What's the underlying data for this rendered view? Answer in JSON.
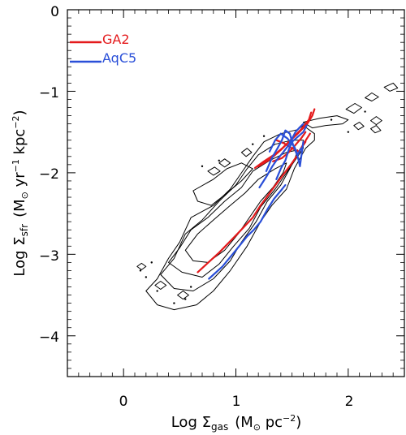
{
  "chart_data": {
    "type": "line",
    "title": "",
    "xlabel": {
      "prefix": "Log ",
      "symbol": "Σ",
      "subscript": "gas",
      "units_open": "(M",
      "units_sun": "⊙",
      "units_rest": " pc",
      "units_exp": "−2",
      "units_close": ")"
    },
    "ylabel": {
      "prefix": "Log ",
      "symbol": "Σ",
      "subscript": "sfr",
      "units_open": "(M",
      "units_sun": "⊙",
      "units_mid": " yr",
      "units_exp1": "−1",
      "units_rest": " kpc",
      "units_exp2": "−2",
      "units_close": ")"
    },
    "xlim": [
      -0.5,
      2.5
    ],
    "ylim": [
      -4.5,
      0
    ],
    "xticks": [
      0,
      1,
      2
    ],
    "xtick_labels": [
      "0",
      "1",
      "2"
    ],
    "yticks": [
      0,
      -1,
      -2,
      -3,
      -4
    ],
    "ytick_labels": [
      "0",
      "−1",
      "−2",
      "−3",
      "−4"
    ],
    "legend_position": "top-left",
    "series": [
      {
        "name": "GA2",
        "color": "#e41a1c",
        "segments": [
          [
            [
              0.66,
              -3.22
            ],
            [
              0.85,
              -2.98
            ],
            [
              1.02,
              -2.74
            ],
            [
              1.15,
              -2.55
            ],
            [
              1.22,
              -2.4
            ],
            [
              1.3,
              -2.25
            ],
            [
              1.38,
              -2.1
            ],
            [
              1.45,
              -1.97
            ],
            [
              1.5,
              -1.88
            ],
            [
              1.55,
              -1.78
            ],
            [
              1.6,
              -1.65
            ],
            [
              1.66,
              -1.52
            ]
          ],
          [
            [
              1.17,
              -1.94
            ],
            [
              1.25,
              -1.86
            ],
            [
              1.35,
              -1.77
            ],
            [
              1.42,
              -1.69
            ],
            [
              1.48,
              -1.61
            ],
            [
              1.55,
              -1.52
            ],
            [
              1.6,
              -1.45
            ],
            [
              1.64,
              -1.39
            ],
            [
              1.68,
              -1.3
            ],
            [
              1.7,
              -1.22
            ]
          ],
          [
            [
              1.2,
              -1.92
            ],
            [
              1.3,
              -1.84
            ],
            [
              1.4,
              -1.72
            ],
            [
              1.5,
              -1.58
            ],
            [
              1.58,
              -1.47
            ],
            [
              1.65,
              -1.35
            ],
            [
              1.67,
              -1.26
            ]
          ],
          [
            [
              1.33,
              -1.86
            ],
            [
              1.41,
              -1.82
            ],
            [
              1.47,
              -1.75
            ],
            [
              1.53,
              -1.66
            ],
            [
              1.58,
              -1.58
            ],
            [
              1.62,
              -1.5
            ]
          ],
          [
            [
              1.36,
              -1.6
            ],
            [
              1.43,
              -1.64
            ],
            [
              1.5,
              -1.7
            ],
            [
              1.56,
              -1.74
            ],
            [
              1.62,
              -1.62
            ]
          ]
        ]
      },
      {
        "name": "AqC5",
        "color": "#2a4fd8",
        "segments": [
          [
            [
              0.76,
              -3.3
            ],
            [
              0.88,
              -3.15
            ],
            [
              1.0,
              -2.95
            ],
            [
              1.1,
              -2.78
            ],
            [
              1.16,
              -2.7
            ],
            [
              1.22,
              -2.6
            ],
            [
              1.28,
              -2.45
            ],
            [
              1.34,
              -2.32
            ],
            [
              1.4,
              -2.22
            ],
            [
              1.44,
              -2.15
            ]
          ],
          [
            [
              1.21,
              -2.18
            ],
            [
              1.27,
              -2.05
            ],
            [
              1.32,
              -1.93
            ],
            [
              1.36,
              -1.85
            ],
            [
              1.42,
              -1.75
            ],
            [
              1.47,
              -1.66
            ],
            [
              1.5,
              -1.58
            ],
            [
              1.53,
              -1.5
            ],
            [
              1.57,
              -1.44
            ],
            [
              1.6,
              -1.4
            ]
          ],
          [
            [
              1.27,
              -1.98
            ],
            [
              1.32,
              -1.82
            ],
            [
              1.37,
              -1.7
            ],
            [
              1.41,
              -1.6
            ],
            [
              1.44,
              -1.48
            ],
            [
              1.48,
              -1.52
            ],
            [
              1.51,
              -1.66
            ],
            [
              1.55,
              -1.8
            ],
            [
              1.57,
              -1.92
            ],
            [
              1.6,
              -1.62
            ]
          ],
          [
            [
              1.36,
              -2.08
            ],
            [
              1.4,
              -1.95
            ],
            [
              1.44,
              -1.85
            ],
            [
              1.47,
              -1.72
            ],
            [
              1.5,
              -1.62
            ],
            [
              1.55,
              -1.56
            ],
            [
              1.6,
              -1.5
            ],
            [
              1.63,
              -1.42
            ]
          ],
          [
            [
              1.3,
              -1.74
            ],
            [
              1.35,
              -1.6
            ],
            [
              1.4,
              -1.52
            ],
            [
              1.46,
              -1.58
            ],
            [
              1.52,
              -1.68
            ],
            [
              1.55,
              -1.78
            ],
            [
              1.58,
              -1.7
            ]
          ]
        ]
      }
    ],
    "contours": [
      [
        [
          0.2,
          -3.45
        ],
        [
          0.3,
          -3.3
        ],
        [
          0.4,
          -3.05
        ],
        [
          0.5,
          -2.85
        ],
        [
          0.6,
          -2.55
        ],
        [
          0.8,
          -2.4
        ],
        [
          0.95,
          -2.2
        ],
        [
          1.05,
          -2.0
        ],
        [
          1.15,
          -1.8
        ],
        [
          1.25,
          -1.62
        ],
        [
          1.4,
          -1.52
        ],
        [
          1.55,
          -1.47
        ],
        [
          1.6,
          -1.42
        ],
        [
          1.7,
          -1.52
        ],
        [
          1.7,
          -1.6
        ],
        [
          1.62,
          -1.7
        ],
        [
          1.52,
          -1.95
        ],
        [
          1.45,
          -2.2
        ],
        [
          1.32,
          -2.4
        ],
        [
          1.22,
          -2.6
        ],
        [
          1.1,
          -2.9
        ],
        [
          0.95,
          -3.2
        ],
        [
          0.8,
          -3.45
        ],
        [
          0.65,
          -3.62
        ],
        [
          0.45,
          -3.68
        ],
        [
          0.3,
          -3.62
        ],
        [
          0.2,
          -3.45
        ]
      ],
      [
        [
          0.33,
          -3.25
        ],
        [
          0.45,
          -3.05
        ],
        [
          0.55,
          -2.75
        ],
        [
          0.7,
          -2.58
        ],
        [
          0.85,
          -2.35
        ],
        [
          1.0,
          -2.15
        ],
        [
          1.1,
          -1.95
        ],
        [
          1.2,
          -1.78
        ],
        [
          1.35,
          -1.65
        ],
        [
          1.5,
          -1.6
        ],
        [
          1.6,
          -1.6
        ],
        [
          1.6,
          -1.7
        ],
        [
          1.5,
          -1.9
        ],
        [
          1.4,
          -2.15
        ],
        [
          1.28,
          -2.35
        ],
        [
          1.18,
          -2.6
        ],
        [
          1.05,
          -2.85
        ],
        [
          0.95,
          -3.08
        ],
        [
          0.8,
          -3.3
        ],
        [
          0.62,
          -3.45
        ],
        [
          0.45,
          -3.42
        ],
        [
          0.33,
          -3.25
        ]
      ],
      [
        [
          0.4,
          -3.1
        ],
        [
          0.5,
          -2.92
        ],
        [
          0.6,
          -2.7
        ],
        [
          0.75,
          -2.55
        ],
        [
          0.9,
          -2.35
        ],
        [
          1.05,
          -2.18
        ],
        [
          1.15,
          -1.98
        ],
        [
          1.3,
          -1.85
        ],
        [
          1.45,
          -1.75
        ],
        [
          1.55,
          -1.72
        ],
        [
          1.52,
          -1.85
        ],
        [
          1.45,
          -2.0
        ],
        [
          1.35,
          -2.2
        ],
        [
          1.22,
          -2.42
        ],
        [
          1.12,
          -2.68
        ],
        [
          0.98,
          -2.9
        ],
        [
          0.85,
          -3.12
        ],
        [
          0.7,
          -3.28
        ],
        [
          0.52,
          -3.22
        ],
        [
          0.4,
          -3.1
        ]
      ],
      [
        [
          0.55,
          -2.95
        ],
        [
          0.66,
          -2.75
        ],
        [
          0.8,
          -2.58
        ],
        [
          0.95,
          -2.4
        ],
        [
          1.08,
          -2.25
        ],
        [
          1.2,
          -2.08
        ],
        [
          1.35,
          -1.95
        ],
        [
          1.45,
          -1.88
        ],
        [
          1.42,
          -2.0
        ],
        [
          1.33,
          -2.18
        ],
        [
          1.22,
          -2.35
        ],
        [
          1.12,
          -2.55
        ],
        [
          1.02,
          -2.75
        ],
        [
          0.9,
          -2.95
        ],
        [
          0.75,
          -3.1
        ],
        [
          0.62,
          -3.08
        ],
        [
          0.55,
          -2.95
        ]
      ],
      [
        [
          0.62,
          -2.22
        ],
        [
          0.8,
          -2.08
        ],
        [
          0.92,
          -1.95
        ],
        [
          1.05,
          -1.88
        ],
        [
          1.15,
          -1.95
        ],
        [
          1.05,
          -2.1
        ],
        [
          0.92,
          -2.25
        ],
        [
          0.78,
          -2.4
        ],
        [
          0.66,
          -2.35
        ],
        [
          0.62,
          -2.22
        ]
      ],
      [
        [
          1.6,
          -1.38
        ],
        [
          1.75,
          -1.33
        ],
        [
          1.9,
          -1.3
        ],
        [
          2.0,
          -1.35
        ],
        [
          1.95,
          -1.4
        ],
        [
          1.8,
          -1.42
        ],
        [
          1.68,
          -1.45
        ],
        [
          1.6,
          -1.38
        ]
      ],
      [
        [
          1.98,
          -1.22
        ],
        [
          2.06,
          -1.15
        ],
        [
          2.12,
          -1.2
        ],
        [
          2.05,
          -1.27
        ],
        [
          1.98,
          -1.22
        ]
      ],
      [
        [
          2.15,
          -1.08
        ],
        [
          2.21,
          -1.02
        ],
        [
          2.27,
          -1.07
        ],
        [
          2.21,
          -1.12
        ],
        [
          2.15,
          -1.08
        ]
      ],
      [
        [
          2.32,
          -0.95
        ],
        [
          2.4,
          -0.9
        ],
        [
          2.44,
          -0.96
        ],
        [
          2.37,
          -1.0
        ],
        [
          2.32,
          -0.95
        ]
      ],
      [
        [
          2.2,
          -1.36
        ],
        [
          2.25,
          -1.31
        ],
        [
          2.3,
          -1.36
        ],
        [
          2.25,
          -1.41
        ],
        [
          2.2,
          -1.36
        ]
      ],
      [
        [
          2.2,
          -1.46
        ],
        [
          2.25,
          -1.42
        ],
        [
          2.29,
          -1.48
        ],
        [
          2.24,
          -1.51
        ],
        [
          2.2,
          -1.46
        ]
      ],
      [
        [
          0.85,
          -1.88
        ],
        [
          0.9,
          -1.83
        ],
        [
          0.95,
          -1.88
        ],
        [
          0.9,
          -1.93
        ],
        [
          0.85,
          -1.88
        ]
      ],
      [
        [
          0.75,
          -1.98
        ],
        [
          0.81,
          -1.93
        ],
        [
          0.86,
          -1.98
        ],
        [
          0.8,
          -2.03
        ],
        [
          0.75,
          -1.98
        ]
      ],
      [
        [
          0.28,
          -3.38
        ],
        [
          0.33,
          -3.33
        ],
        [
          0.38,
          -3.38
        ],
        [
          0.33,
          -3.43
        ],
        [
          0.28,
          -3.38
        ]
      ],
      [
        [
          0.12,
          -3.15
        ],
        [
          0.16,
          -3.11
        ],
        [
          0.2,
          -3.15
        ],
        [
          0.16,
          -3.19
        ],
        [
          0.12,
          -3.15
        ]
      ],
      [
        [
          0.48,
          -3.5
        ],
        [
          0.53,
          -3.45
        ],
        [
          0.58,
          -3.5
        ],
        [
          0.53,
          -3.55
        ],
        [
          0.48,
          -3.5
        ]
      ],
      [
        [
          1.05,
          -1.75
        ],
        [
          1.1,
          -1.7
        ],
        [
          1.14,
          -1.75
        ],
        [
          1.09,
          -1.8
        ],
        [
          1.05,
          -1.75
        ]
      ],
      [
        [
          2.05,
          -1.42
        ],
        [
          2.1,
          -1.38
        ],
        [
          2.14,
          -1.43
        ],
        [
          2.09,
          -1.47
        ],
        [
          2.05,
          -1.42
        ]
      ]
    ],
    "dots": [
      [
        0.7,
        -1.92
      ],
      [
        0.15,
        -3.2
      ],
      [
        0.6,
        -3.4
      ],
      [
        1.25,
        -1.55
      ],
      [
        2.15,
        -1.25
      ],
      [
        0.2,
        -3.28
      ],
      [
        1.85,
        -1.35
      ],
      [
        2.0,
        -1.5
      ],
      [
        0.85,
        -1.85
      ],
      [
        0.3,
        -3.45
      ],
      [
        0.55,
        -3.55
      ],
      [
        1.15,
        -1.65
      ],
      [
        0.25,
        -3.1
      ],
      [
        0.45,
        -3.6
      ]
    ]
  }
}
